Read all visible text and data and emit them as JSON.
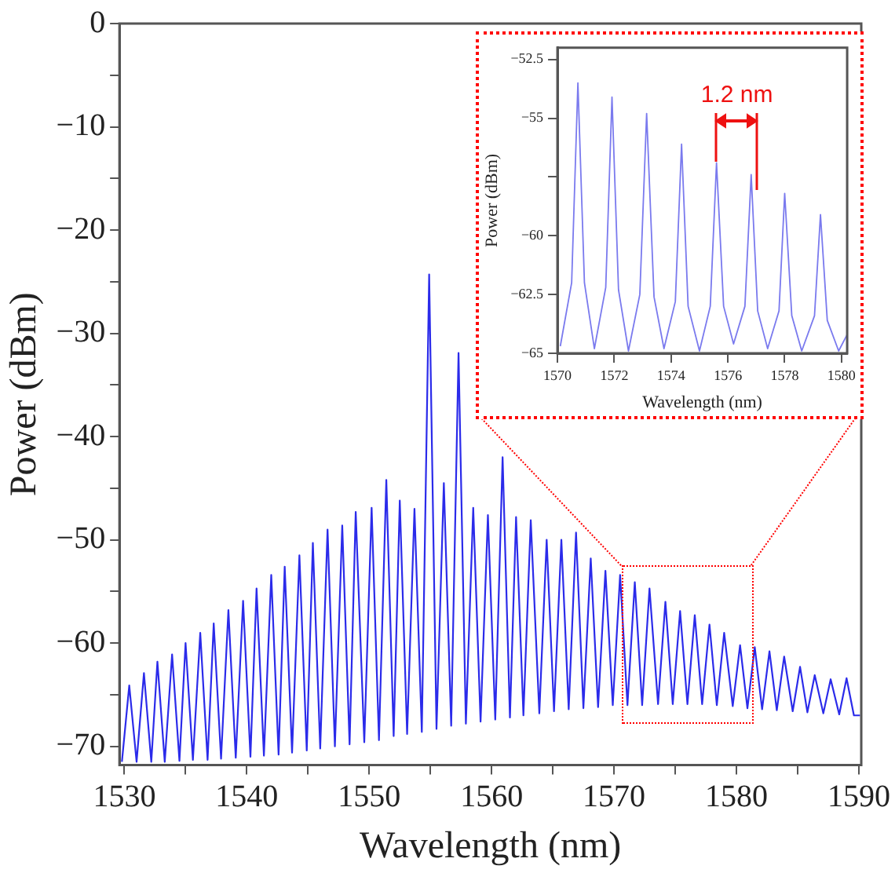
{
  "chart_data": [
    {
      "type": "line",
      "xlabel": "Wavelength (nm)",
      "ylabel": "Power (dBm)",
      "xlim": [
        1529.6,
        1590.2
      ],
      "xticks": [
        1530,
        {
          "value": 1535,
          "label": null
        },
        1540,
        {
          "value": 1545,
          "label": null
        },
        1550,
        {
          "value": 1555,
          "label": null
        },
        1560,
        {
          "value": 1565,
          "label": null
        },
        1570,
        {
          "value": 1575,
          "label": null
        },
        1580,
        {
          "value": 1585,
          "label": null
        },
        1590
      ],
      "ylim": [
        -71.8,
        0
      ],
      "yticks": [
        0,
        {
          "value": -5,
          "label": null
        },
        -10,
        {
          "value": -15,
          "label": null
        },
        -20,
        {
          "value": -25,
          "label": null
        },
        -30,
        {
          "value": -35,
          "label": null
        },
        -40,
        {
          "value": -45,
          "label": null
        },
        -50,
        {
          "value": -55,
          "label": null
        },
        -60,
        {
          "value": -65,
          "label": null
        },
        -70
      ],
      "grid": false,
      "marker": "none",
      "line_style": "solid",
      "series": [
        {
          "color": "#2b2bea",
          "x": [
            1529.8,
            1530.4,
            1531.0,
            1531.6,
            1532.2,
            1532.7,
            1533.3,
            1533.9,
            1534.5,
            1535.0,
            1535.6,
            1536.2,
            1536.8,
            1537.3,
            1537.9,
            1538.5,
            1539.1,
            1539.7,
            1540.3,
            1540.8,
            1541.4,
            1542.0,
            1542.6,
            1543.1,
            1543.7,
            1544.3,
            1544.9,
            1545.4,
            1546.0,
            1546.6,
            1547.2,
            1547.8,
            1548.4,
            1548.9,
            1549.6,
            1550.2,
            1550.8,
            1551.4,
            1552.0,
            1552.5,
            1553.1,
            1553.7,
            1554.3,
            1554.9,
            1555.5,
            1556.1,
            1556.7,
            1557.3,
            1557.9,
            1558.5,
            1559.1,
            1559.7,
            1560.3,
            1560.9,
            1561.5,
            1562.0,
            1562.6,
            1563.2,
            1563.9,
            1564.5,
            1565.1,
            1565.7,
            1566.3,
            1566.9,
            1567.5,
            1568.1,
            1568.7,
            1569.3,
            1569.9,
            1570.5,
            1571.1,
            1571.7,
            1572.3,
            1572.9,
            1573.6,
            1574.2,
            1574.8,
            1575.4,
            1576.0,
            1576.6,
            1577.2,
            1577.8,
            1578.4,
            1579.0,
            1579.7,
            1580.3,
            1580.9,
            1581.5,
            1582.1,
            1582.7,
            1583.3,
            1583.9,
            1584.6,
            1585.2,
            1585.8,
            1586.4,
            1587.1,
            1587.7,
            1588.4,
            1589.0,
            1589.6,
            1590.1
          ],
          "values": [
            -71.5,
            -64.1,
            -71.5,
            -62.9,
            -71.5,
            -61.8,
            -71.5,
            -61.1,
            -71.4,
            -60.0,
            -71.3,
            -59.0,
            -71.3,
            -58.1,
            -71.2,
            -56.8,
            -71.1,
            -55.9,
            -71.0,
            -54.7,
            -70.9,
            -53.4,
            -70.8,
            -52.6,
            -70.6,
            -51.5,
            -70.4,
            -50.3,
            -70.2,
            -49.0,
            -70.0,
            -48.6,
            -69.8,
            -47.3,
            -69.6,
            -46.9,
            -69.4,
            -44.2,
            -69.0,
            -46.2,
            -68.8,
            -47.0,
            -68.6,
            -24.3,
            -68.3,
            -44.5,
            -68.0,
            -31.9,
            -67.8,
            -46.9,
            -67.6,
            -47.6,
            -67.4,
            -42.0,
            -67.2,
            -47.8,
            -67.0,
            -48.1,
            -66.8,
            -50.0,
            -66.6,
            -50.0,
            -66.4,
            -49.3,
            -66.3,
            -51.8,
            -66.2,
            -53.0,
            -66.0,
            -53.4,
            -66.0,
            -54.1,
            -66.0,
            -54.7,
            -65.9,
            -56.0,
            -65.9,
            -56.9,
            -65.9,
            -57.3,
            -65.9,
            -58.2,
            -66.0,
            -59.0,
            -66.1,
            -60.2,
            -66.3,
            -60.4,
            -66.4,
            -60.8,
            -66.5,
            -61.3,
            -66.6,
            -62.3,
            -66.7,
            -63.1,
            -66.8,
            -63.5,
            -66.9,
            -63.4,
            -67.0,
            -67.0
          ]
        }
      ]
    },
    {
      "type": "line",
      "xlabel": "Wavelength (nm)",
      "ylabel": "Power (dBm)",
      "xlim": [
        1570,
        1580.2
      ],
      "xticks": [
        1570,
        1572,
        1574,
        1576,
        1578,
        1580
      ],
      "ylim": [
        -65,
        -52
      ],
      "yticks": [
        -65,
        -62.5,
        -60,
        {
          "value": -57.5,
          "label": null
        },
        -55,
        -52.5
      ],
      "grid": false,
      "marker": "none",
      "line_style": "solid",
      "annotations": [
        {
          "text": "1.2 nm",
          "x": 1575.6,
          "y": -56.9
        }
      ],
      "series": [
        {
          "color": "#7a7aee",
          "x": [
            1570.1,
            1570.5,
            1570.72,
            1570.95,
            1571.3,
            1571.7,
            1571.92,
            1572.15,
            1572.5,
            1572.9,
            1573.14,
            1573.4,
            1573.75,
            1574.15,
            1574.37,
            1574.6,
            1575.0,
            1575.38,
            1575.6,
            1575.85,
            1576.2,
            1576.6,
            1576.82,
            1577.05,
            1577.4,
            1577.8,
            1578.0,
            1578.25,
            1578.6,
            1579.05,
            1579.26,
            1579.5,
            1579.9,
            1580.2
          ],
          "values": [
            -64.7,
            -62.0,
            -53.5,
            -62.0,
            -64.8,
            -62.2,
            -54.1,
            -62.3,
            -64.9,
            -62.5,
            -54.8,
            -62.6,
            -64.8,
            -62.8,
            -56.1,
            -63.0,
            -64.9,
            -63.0,
            -56.9,
            -63.0,
            -64.6,
            -63.0,
            -57.4,
            -63.2,
            -64.8,
            -63.2,
            -58.2,
            -63.4,
            -64.9,
            -63.4,
            -59.1,
            -63.6,
            -64.9,
            -64.2
          ]
        }
      ]
    }
  ]
}
